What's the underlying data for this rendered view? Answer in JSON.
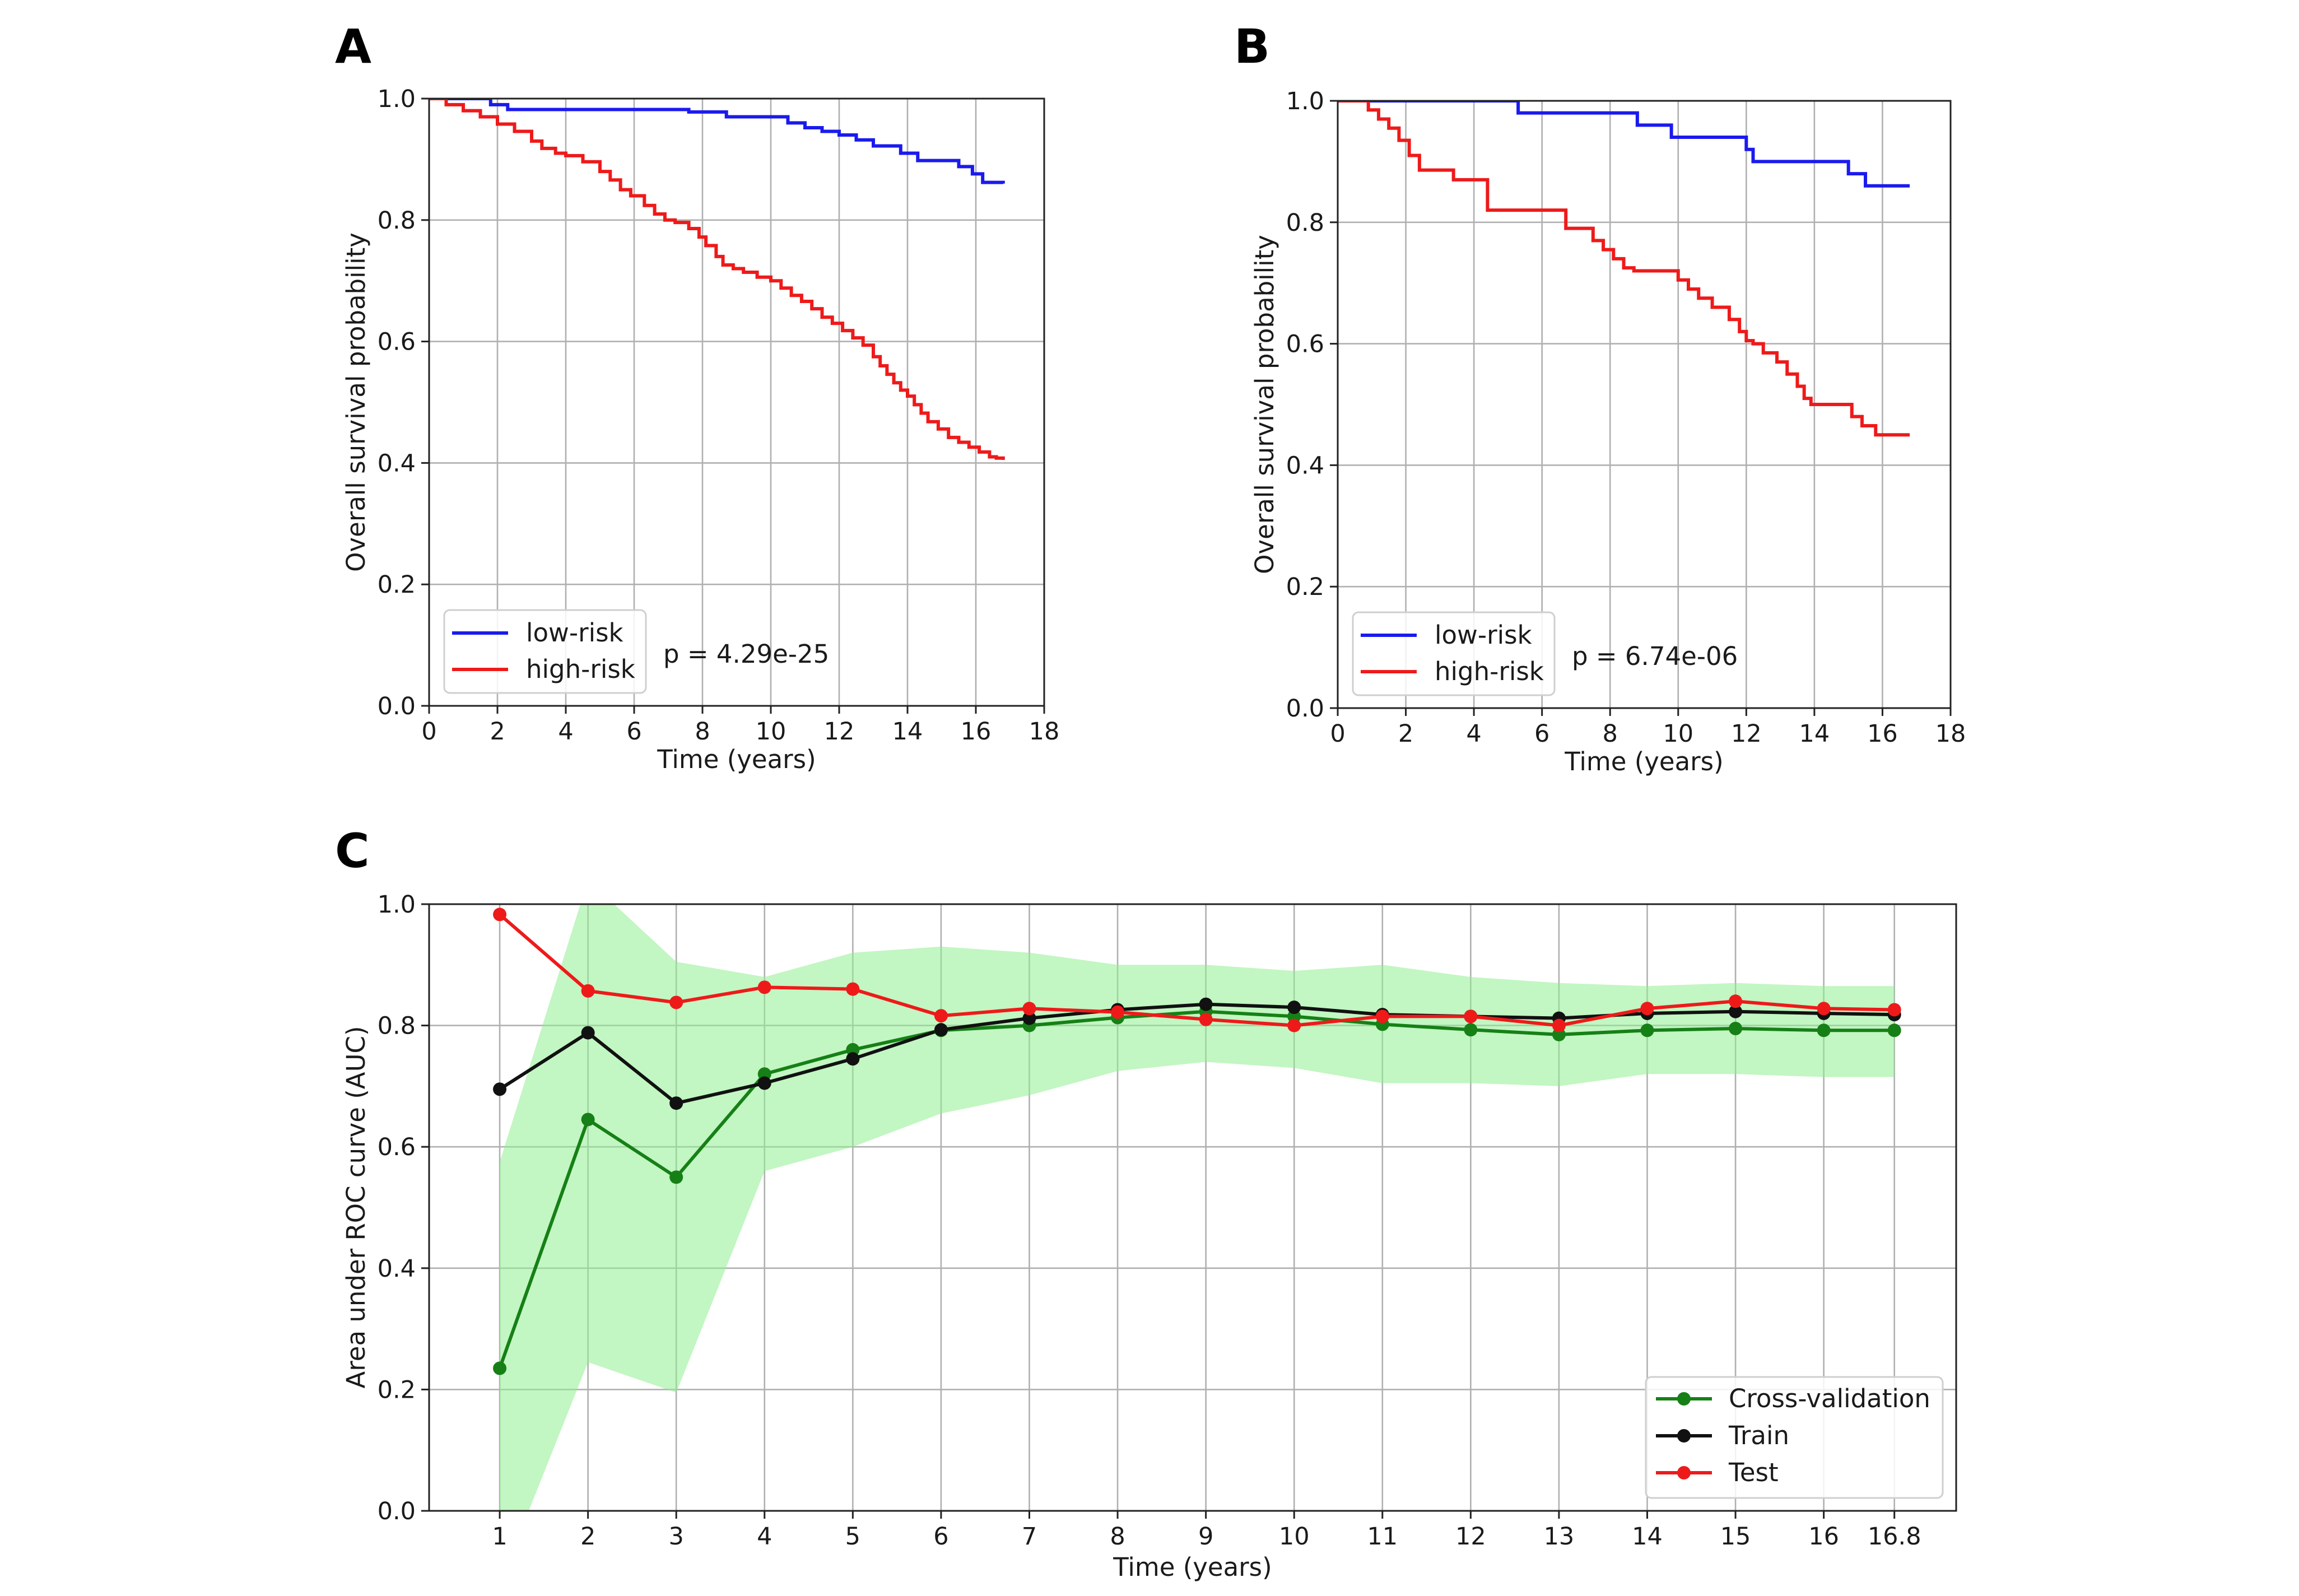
{
  "colors": {
    "low_risk": "#1a1aee",
    "high_risk": "#ee1a1a",
    "cv": "#168016",
    "cv_band": "#90ee90",
    "train": "#111111",
    "test": "#ee1a1a"
  },
  "chart_data": [
    {
      "panel": "A",
      "type": "line",
      "step": true,
      "xlabel": "Time (years)",
      "ylabel": "Overall survival probability",
      "xlim": [
        0,
        18
      ],
      "ylim": [
        0.0,
        1.0
      ],
      "xticks": [
        "0",
        "2",
        "4",
        "6",
        "8",
        "10",
        "12",
        "14",
        "16",
        "18"
      ],
      "yticks": [
        "0.0",
        "0.2",
        "0.4",
        "0.6",
        "0.8",
        "1.0"
      ],
      "grid": true,
      "legend_position": "lower-left",
      "annotation": "p = 4.29e-25",
      "series": [
        {
          "name": "low-risk",
          "color_key": "low_risk",
          "x": [
            0,
            1.8,
            2.3,
            7.6,
            8.7,
            10.5,
            11.0,
            11.5,
            12.0,
            12.5,
            13.0,
            13.8,
            14.3,
            15.5,
            15.9,
            16.2,
            16.8
          ],
          "y": [
            1.0,
            0.99,
            0.982,
            0.978,
            0.97,
            0.96,
            0.952,
            0.946,
            0.94,
            0.932,
            0.922,
            0.91,
            0.898,
            0.888,
            0.876,
            0.862,
            0.86
          ]
        },
        {
          "name": "high-risk",
          "color_key": "high_risk",
          "x": [
            0,
            0.5,
            1.0,
            1.5,
            2.0,
            2.5,
            3.0,
            3.3,
            3.7,
            4.0,
            4.5,
            5.0,
            5.3,
            5.6,
            5.9,
            6.3,
            6.6,
            6.9,
            7.2,
            7.6,
            7.9,
            8.1,
            8.4,
            8.6,
            8.9,
            9.2,
            9.6,
            10.0,
            10.3,
            10.6,
            10.9,
            11.2,
            11.5,
            11.8,
            12.1,
            12.4,
            12.7,
            13.0,
            13.2,
            13.4,
            13.6,
            13.8,
            14.0,
            14.2,
            14.4,
            14.6,
            14.9,
            15.2,
            15.5,
            15.8,
            16.1,
            16.4,
            16.6,
            16.8
          ],
          "y": [
            1.0,
            0.99,
            0.98,
            0.97,
            0.958,
            0.946,
            0.93,
            0.918,
            0.91,
            0.906,
            0.896,
            0.88,
            0.866,
            0.85,
            0.84,
            0.824,
            0.81,
            0.8,
            0.796,
            0.786,
            0.772,
            0.758,
            0.74,
            0.726,
            0.72,
            0.714,
            0.706,
            0.7,
            0.688,
            0.676,
            0.666,
            0.654,
            0.64,
            0.63,
            0.618,
            0.606,
            0.594,
            0.575,
            0.56,
            0.546,
            0.532,
            0.52,
            0.51,
            0.496,
            0.482,
            0.468,
            0.456,
            0.442,
            0.434,
            0.426,
            0.418,
            0.41,
            0.408,
            0.405
          ]
        }
      ]
    },
    {
      "panel": "B",
      "type": "line",
      "step": true,
      "xlabel": "Time (years)",
      "ylabel": "Overall survival probability",
      "xlim": [
        0,
        18
      ],
      "ylim": [
        0.0,
        1.0
      ],
      "xticks": [
        "0",
        "2",
        "4",
        "6",
        "8",
        "10",
        "12",
        "14",
        "16",
        "18"
      ],
      "yticks": [
        "0.0",
        "0.2",
        "0.4",
        "0.6",
        "0.8",
        "1.0"
      ],
      "grid": true,
      "legend_position": "lower-left",
      "annotation": "p = 6.74e-06",
      "series": [
        {
          "name": "low-risk",
          "color_key": "low_risk",
          "x": [
            0,
            5.3,
            8.8,
            9.8,
            12.0,
            12.2,
            15.0,
            15.5,
            16.8
          ],
          "y": [
            1.0,
            0.98,
            0.96,
            0.94,
            0.92,
            0.9,
            0.88,
            0.86,
            0.86
          ],
          "x_end": 16.8
        },
        {
          "name": "high-risk",
          "color_key": "high_risk",
          "x": [
            0,
            0.9,
            1.2,
            1.5,
            1.8,
            2.1,
            2.4,
            3.4,
            4.4,
            5.2,
            6.7,
            7.5,
            7.8,
            8.1,
            8.4,
            8.7,
            10.0,
            10.3,
            10.6,
            11.0,
            11.5,
            11.8,
            12.0,
            12.2,
            12.5,
            12.9,
            13.2,
            13.5,
            13.7,
            13.9,
            15.1,
            15.4,
            15.8,
            16.8
          ],
          "y": [
            1.0,
            0.985,
            0.97,
            0.955,
            0.935,
            0.91,
            0.886,
            0.87,
            0.82,
            0.82,
            0.79,
            0.77,
            0.755,
            0.74,
            0.725,
            0.72,
            0.705,
            0.69,
            0.675,
            0.66,
            0.64,
            0.62,
            0.605,
            0.6,
            0.585,
            0.57,
            0.55,
            0.53,
            0.51,
            0.5,
            0.48,
            0.465,
            0.45,
            0.45
          ],
          "x_end": 16.8
        }
      ]
    },
    {
      "panel": "C",
      "type": "line",
      "xlabel": "Time (years)",
      "ylabel": "Area under ROC curve (AUC)",
      "xlim": [
        0.2,
        17.5
      ],
      "ylim": [
        0.0,
        1.0
      ],
      "xticks": [
        "1",
        "2",
        "3",
        "4",
        "5",
        "6",
        "7",
        "8",
        "9",
        "10",
        "11",
        "12",
        "13",
        "14",
        "15",
        "16",
        "16.8"
      ],
      "yticks": [
        "0.0",
        "0.2",
        "0.4",
        "0.6",
        "0.8",
        "1.0"
      ],
      "grid": true,
      "legend_position": "lower-right",
      "x": [
        1,
        2,
        3,
        4,
        5,
        6,
        7,
        8,
        9,
        10,
        11,
        12,
        13,
        14,
        15,
        16,
        16.8
      ],
      "band": {
        "series": "Cross-validation",
        "lower": [
          -0.12,
          0.245,
          0.195,
          0.56,
          0.6,
          0.655,
          0.685,
          0.725,
          0.74,
          0.73,
          0.705,
          0.705,
          0.7,
          0.72,
          0.72,
          0.715,
          0.715
        ],
        "upper": [
          0.575,
          1.04,
          0.905,
          0.88,
          0.92,
          0.93,
          0.92,
          0.9,
          0.9,
          0.89,
          0.9,
          0.88,
          0.87,
          0.865,
          0.87,
          0.865,
          0.865
        ]
      },
      "series": [
        {
          "name": "Cross-validation",
          "color_key": "cv",
          "values": [
            0.235,
            0.645,
            0.55,
            0.72,
            0.76,
            0.792,
            0.8,
            0.813,
            0.823,
            0.815,
            0.802,
            0.793,
            0.785,
            0.792,
            0.795,
            0.792,
            0.792
          ]
        },
        {
          "name": "Train",
          "color_key": "train",
          "values": [
            0.695,
            0.788,
            0.672,
            0.705,
            0.745,
            0.793,
            0.812,
            0.826,
            0.835,
            0.83,
            0.818,
            0.815,
            0.812,
            0.82,
            0.823,
            0.82,
            0.818
          ]
        },
        {
          "name": "Test",
          "color_key": "test",
          "values": [
            0.983,
            0.857,
            0.838,
            0.863,
            0.86,
            0.816,
            0.828,
            0.822,
            0.81,
            0.8,
            0.815,
            0.815,
            0.8,
            0.828,
            0.84,
            0.828,
            0.826
          ]
        }
      ]
    }
  ]
}
